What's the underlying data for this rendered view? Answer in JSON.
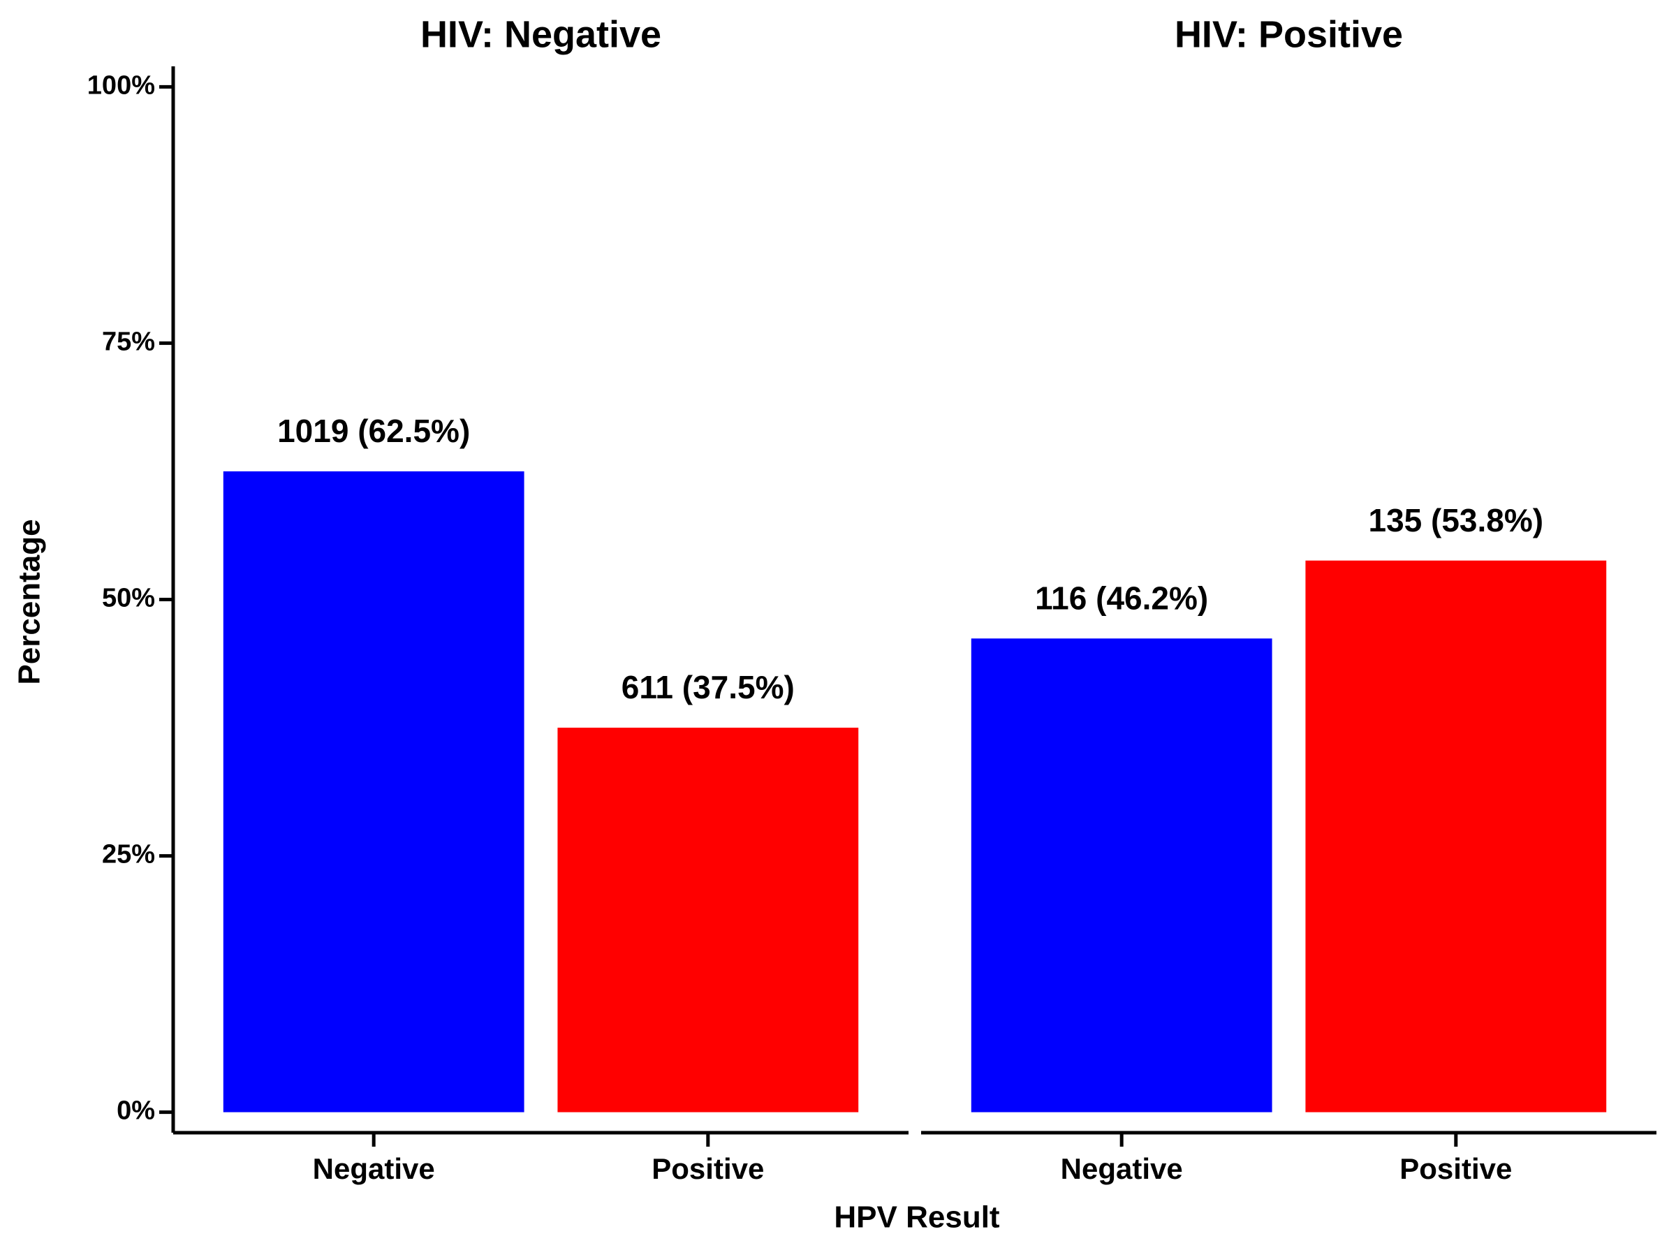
{
  "chart_data": {
    "type": "bar",
    "ylabel": "Percentage",
    "xlabel": "HPV Result",
    "ylim": [
      -2,
      102
    ],
    "yticks": [
      {
        "value": 0,
        "label": "0%"
      },
      {
        "value": 25,
        "label": "25%"
      },
      {
        "value": 50,
        "label": "50%"
      },
      {
        "value": 75,
        "label": "75%"
      },
      {
        "value": 100,
        "label": "100%"
      }
    ],
    "facets": [
      {
        "title": "HIV:  Negative",
        "categories": [
          "Negative",
          "Positive"
        ],
        "values": [
          62.5,
          37.5
        ],
        "value_labels": [
          "1019 (62.5%)",
          "611 (37.5%)"
        ],
        "colors": [
          "#0000ff",
          "#ff0000"
        ]
      },
      {
        "title": "HIV:  Positive",
        "categories": [
          "Negative",
          "Positive"
        ],
        "values": [
          46.2,
          53.8
        ],
        "value_labels": [
          "116 (46.2%)",
          "135 (53.8%)"
        ],
        "colors": [
          "#0000ff",
          "#ff0000"
        ]
      }
    ]
  }
}
